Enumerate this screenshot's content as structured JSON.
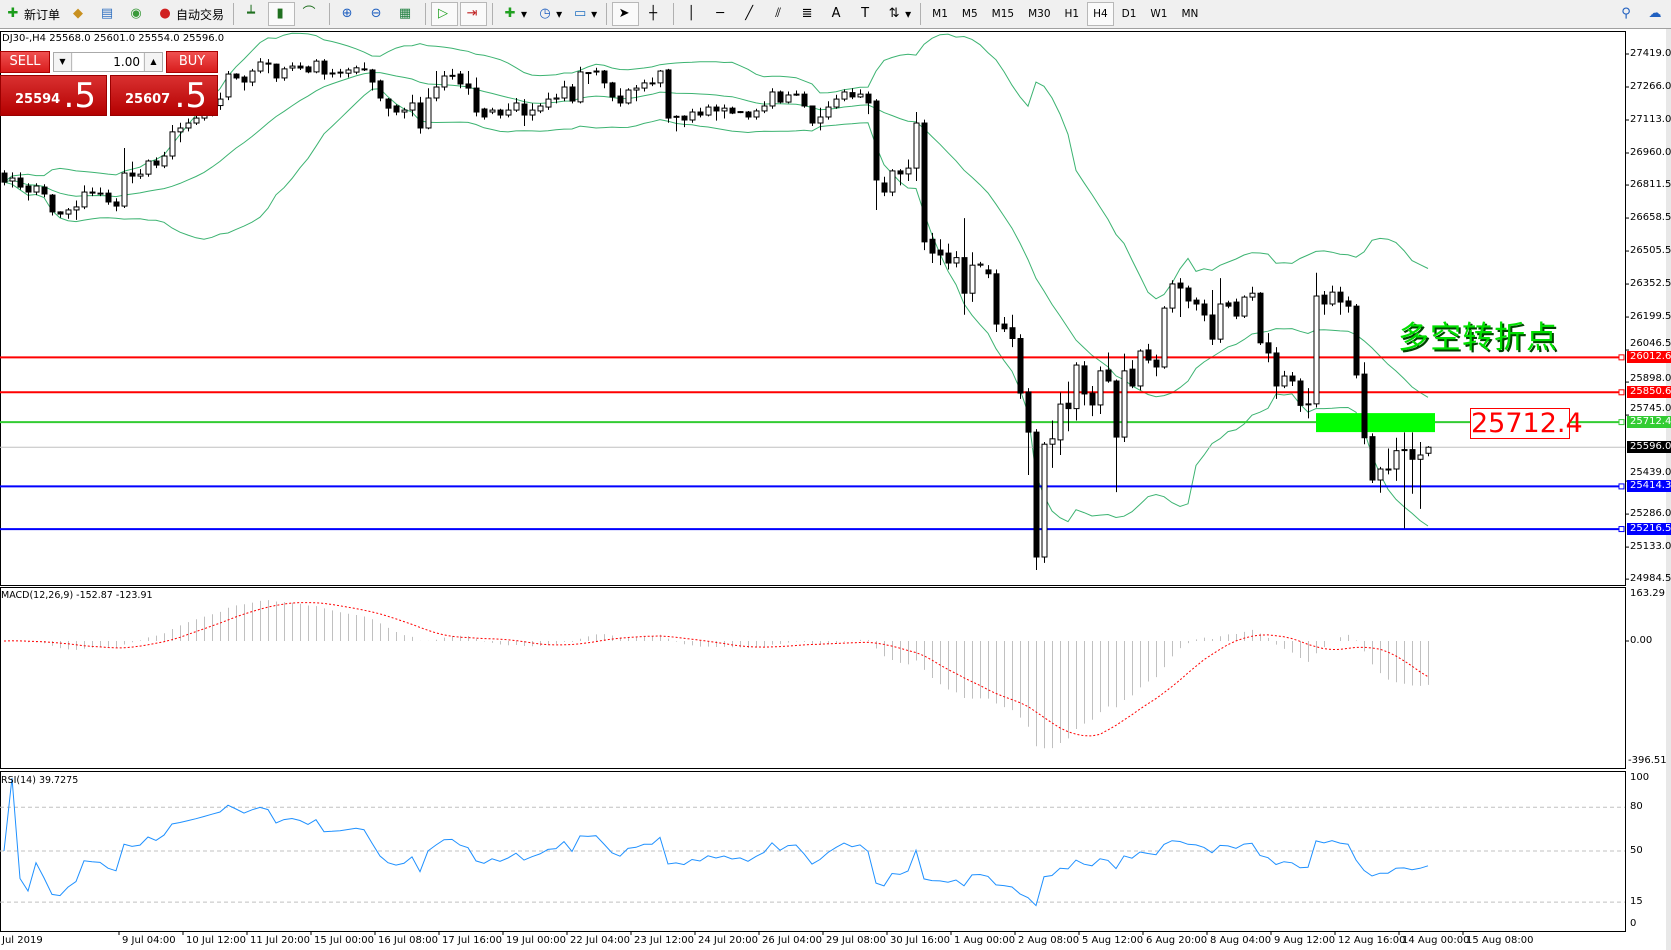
{
  "toolbar": {
    "new_order": "新订单",
    "auto_trading": "自动交易",
    "timeframes": [
      "M1",
      "M5",
      "M15",
      "M30",
      "H1",
      "H4",
      "D1",
      "W1",
      "MN"
    ],
    "active_timeframe": "H4"
  },
  "chart": {
    "header": "DJ30-,H4  25568.0 25601.0 25554.0 25596.0",
    "symbol": "DJ30-",
    "period": "H4"
  },
  "trade_panel": {
    "sell_label": "SELL",
    "buy_label": "BUY",
    "lot": "1.00",
    "sell_price_main": "25594",
    "sell_price_frac": ".5",
    "buy_price_main": "25607",
    "buy_price_frac": ".5"
  },
  "price_axis": {
    "labels": [
      "27419.0",
      "27266.0",
      "27113.0",
      "26960.0",
      "26811.5",
      "26658.5",
      "26505.5",
      "26352.5",
      "26199.5",
      "26046.5",
      "25898.0",
      "25745.0",
      "25439.0",
      "25286.0",
      "25133.0",
      "24984.5"
    ]
  },
  "time_axis": {
    "labels": [
      "Jul 2019",
      "9 Jul 04:00",
      "10 Jul 12:00",
      "11 Jul 20:00",
      "15 Jul 00:00",
      "16 Jul 08:00",
      "17 Jul 16:00",
      "19 Jul 00:00",
      "22 Jul 04:00",
      "23 Jul 12:00",
      "24 Jul 20:00",
      "26 Jul 04:00",
      "29 Jul 08:00",
      "30 Jul 16:00",
      "1 Aug 00:00",
      "2 Aug 08:00",
      "5 Aug 12:00",
      "6 Aug 20:00",
      "8 Aug 04:00",
      "9 Aug 12:00",
      "12 Aug 16:00",
      "14 Aug 00:00",
      "15 Aug 08:00"
    ]
  },
  "hlines": [
    {
      "price": "26012.6",
      "color": "#ff0000"
    },
    {
      "price": "25850.6",
      "color": "#ff0000"
    },
    {
      "price": "25712.4",
      "color": "#33cc33"
    },
    {
      "price": "25414.3",
      "color": "#0000ff"
    },
    {
      "price": "25216.5",
      "color": "#0000ff"
    }
  ],
  "bid_line": {
    "price": "25596.0",
    "color": "#c0c0c0"
  },
  "annotations": {
    "text": "多空转折点",
    "text_color": "#00e000",
    "price_label": "25712.4",
    "zone_color": "#00ff00"
  },
  "macd": {
    "label": "MACD(12,26,9) -152.87 -123.91",
    "max_label": "163.29",
    "zero_label": "0.00",
    "min_label": "-396.51",
    "max": 163.29,
    "min": -396.51
  },
  "rsi": {
    "label": "RSI(14) 39.7275",
    "levels": [
      "100",
      "80",
      "50",
      "15",
      "0"
    ]
  },
  "chart_data": {
    "type": "candlestick",
    "indicators": [
      "Bollinger Bands(20,2)",
      "MACD(12,26,9)",
      "RSI(14)"
    ],
    "bb_color": "#3cb371",
    "ohlc": [
      [
        26867,
        26880,
        26810,
        26825
      ],
      [
        26830,
        26870,
        26800,
        26844
      ],
      [
        26844,
        26870,
        26790,
        26802
      ],
      [
        26807,
        26820,
        26740,
        26779
      ],
      [
        26779,
        26820,
        26765,
        26807
      ],
      [
        26802,
        26815,
        26755,
        26770
      ],
      [
        26765,
        26770,
        26670,
        26687
      ],
      [
        26687,
        26690,
        26660,
        26677
      ],
      [
        26677,
        26705,
        26655,
        26696
      ],
      [
        26696,
        26740,
        26650,
        26710
      ],
      [
        26710,
        26810,
        26700,
        26779
      ],
      [
        26779,
        26800,
        26760,
        26774
      ],
      [
        26774,
        26800,
        26760,
        26770
      ],
      [
        26774,
        26790,
        26720,
        26733
      ],
      [
        26733,
        26750,
        26690,
        26714
      ],
      [
        26714,
        26983,
        26705,
        26867
      ],
      [
        26867,
        26920,
        26820,
        26853
      ],
      [
        26853,
        26885,
        26840,
        26862
      ],
      [
        26862,
        26930,
        26850,
        26923
      ],
      [
        26923,
        26940,
        26890,
        26904
      ],
      [
        26900,
        26965,
        26890,
        26946
      ],
      [
        26946,
        27090,
        26930,
        27058
      ],
      [
        27058,
        27100,
        27010,
        27076
      ],
      [
        27076,
        27120,
        27060,
        27099
      ],
      [
        27099,
        27140,
        27090,
        27122
      ],
      [
        27122,
        27170,
        27110,
        27150
      ],
      [
        27150,
        27200,
        27130,
        27180
      ],
      [
        27180,
        27240,
        27160,
        27210
      ],
      [
        27220,
        27340,
        27205,
        27326
      ],
      [
        27326,
        27330,
        27300,
        27308
      ],
      [
        27312,
        27320,
        27250,
        27289
      ],
      [
        27289,
        27350,
        27270,
        27340
      ],
      [
        27340,
        27400,
        27330,
        27382
      ],
      [
        27377,
        27395,
        27330,
        27372
      ],
      [
        27372,
        27375,
        27290,
        27308
      ],
      [
        27308,
        27360,
        27295,
        27350
      ],
      [
        27354,
        27380,
        27340,
        27363
      ],
      [
        27363,
        27380,
        27345,
        27354
      ],
      [
        27359,
        27365,
        27330,
        27336
      ],
      [
        27336,
        27395,
        27330,
        27386
      ],
      [
        27386,
        27395,
        27300,
        27326
      ],
      [
        27331,
        27350,
        27310,
        27330
      ],
      [
        27331,
        27350,
        27310,
        27335
      ],
      [
        27330,
        27355,
        27310,
        27345
      ],
      [
        27335,
        27365,
        27325,
        27355
      ],
      [
        27350,
        27380,
        27340,
        27349
      ],
      [
        27345,
        27350,
        27250,
        27289
      ],
      [
        27294,
        27300,
        27200,
        27215
      ],
      [
        27210,
        27215,
        27130,
        27168
      ],
      [
        27178,
        27185,
        27135,
        27150
      ],
      [
        27150,
        27170,
        27120,
        27159
      ],
      [
        27159,
        27230,
        27130,
        27192
      ],
      [
        27192,
        27220,
        27050,
        27076
      ],
      [
        27076,
        27260,
        27070,
        27215
      ],
      [
        27215,
        27340,
        27200,
        27266
      ],
      [
        27266,
        27340,
        27250,
        27317
      ],
      [
        27317,
        27350,
        27300,
        27320
      ],
      [
        27326,
        27340,
        27260,
        27280
      ],
      [
        27280,
        27340,
        27230,
        27261
      ],
      [
        27261,
        27310,
        27130,
        27150
      ],
      [
        27164,
        27170,
        27115,
        27127
      ],
      [
        27150,
        27170,
        27140,
        27159
      ],
      [
        27159,
        27165,
        27120,
        27136
      ],
      [
        27136,
        27190,
        27125,
        27159
      ],
      [
        27159,
        27215,
        27150,
        27192
      ],
      [
        27187,
        27210,
        27085,
        27136
      ],
      [
        27136,
        27190,
        27110,
        27159
      ],
      [
        27155,
        27190,
        27145,
        27178
      ],
      [
        27173,
        27240,
        27160,
        27210
      ],
      [
        27210,
        27235,
        27190,
        27215
      ],
      [
        27215,
        27295,
        27200,
        27266
      ],
      [
        27266,
        27280,
        27190,
        27201
      ],
      [
        27197,
        27360,
        27190,
        27336
      ],
      [
        27331,
        27335,
        27280,
        27333
      ],
      [
        27336,
        27355,
        27320,
        27340
      ],
      [
        27340,
        27345,
        27260,
        27285
      ],
      [
        27285,
        27290,
        27200,
        27220
      ],
      [
        27224,
        27260,
        27175,
        27192
      ],
      [
        27192,
        27260,
        27185,
        27252
      ],
      [
        27252,
        27275,
        27200,
        27261
      ],
      [
        27261,
        27300,
        27245,
        27285
      ],
      [
        27283,
        27310,
        27270,
        27285
      ],
      [
        27285,
        27345,
        27265,
        27340
      ],
      [
        27345,
        27350,
        27100,
        27122
      ],
      [
        27127,
        27135,
        27060,
        27130
      ],
      [
        27131,
        27135,
        27080,
        27113
      ],
      [
        27113,
        27165,
        27100,
        27150
      ],
      [
        27150,
        27170,
        27125,
        27136
      ],
      [
        27136,
        27185,
        27130,
        27173
      ],
      [
        27173,
        27185,
        27110,
        27155
      ],
      [
        27155,
        27185,
        27120,
        27168
      ],
      [
        27168,
        27175,
        27140,
        27145
      ],
      [
        27150,
        27155,
        27145,
        27152
      ],
      [
        27150,
        27155,
        27115,
        27127
      ],
      [
        27127,
        27165,
        27115,
        27155
      ],
      [
        27155,
        27200,
        27145,
        27178
      ],
      [
        27178,
        27260,
        27165,
        27243
      ],
      [
        27243,
        27250,
        27190,
        27196
      ],
      [
        27196,
        27245,
        27190,
        27229
      ],
      [
        27229,
        27250,
        27225,
        27233
      ],
      [
        27233,
        27245,
        27170,
        27178
      ],
      [
        27178,
        27180,
        27085,
        27099
      ],
      [
        27099,
        27170,
        27065,
        27127
      ],
      [
        27127,
        27200,
        27115,
        27173
      ],
      [
        27173,
        27230,
        27165,
        27210
      ],
      [
        27210,
        27255,
        27200,
        27243
      ],
      [
        27240,
        27260,
        27210,
        27220
      ],
      [
        27220,
        27255,
        27215,
        27233
      ],
      [
        27233,
        27245,
        27140,
        27192
      ],
      [
        27201,
        27210,
        26696,
        26835
      ],
      [
        26821,
        26850,
        26760,
        26779
      ],
      [
        26779,
        26885,
        26760,
        26877
      ],
      [
        26877,
        26885,
        26810,
        26863
      ],
      [
        26863,
        26930,
        26830,
        26890
      ],
      [
        26890,
        27150,
        26830,
        27099
      ],
      [
        27099,
        27115,
        26510,
        26548
      ],
      [
        26560,
        26590,
        26450,
        26496
      ],
      [
        26510,
        26560,
        26440,
        26487
      ],
      [
        26496,
        26540,
        26420,
        26450
      ],
      [
        26450,
        26505,
        26430,
        26475
      ],
      [
        26475,
        26658,
        26210,
        26310
      ],
      [
        26310,
        26500,
        26270,
        26440
      ],
      [
        26440,
        26455,
        26430,
        26445
      ],
      [
        26418,
        26440,
        26380,
        26400
      ],
      [
        26400,
        26420,
        26130,
        26167
      ],
      [
        26167,
        26200,
        26130,
        26145
      ],
      [
        26150,
        26210,
        26060,
        26100
      ],
      [
        26100,
        26120,
        25820,
        25847
      ],
      [
        25852,
        25870,
        25467,
        25666
      ],
      [
        25666,
        25680,
        25027,
        25087
      ],
      [
        25087,
        25620,
        25060,
        25610
      ],
      [
        25610,
        25720,
        25500,
        25635
      ],
      [
        25630,
        25850,
        25560,
        25796
      ],
      [
        25800,
        25900,
        25670,
        25775
      ],
      [
        25775,
        25990,
        25720,
        25977
      ],
      [
        25973,
        25995,
        25790,
        25843
      ],
      [
        25847,
        25880,
        25740,
        25792
      ],
      [
        25792,
        25970,
        25750,
        25950
      ],
      [
        25954,
        26035,
        25895,
        25903
      ],
      [
        25903,
        25910,
        25388,
        25643
      ],
      [
        25643,
        26030,
        25620,
        25950
      ],
      [
        25958,
        26000,
        25870,
        25880
      ],
      [
        25880,
        26050,
        25860,
        26042
      ],
      [
        26047,
        26075,
        25985,
        26000
      ],
      [
        26000,
        26025,
        25925,
        25968
      ],
      [
        25968,
        26250,
        25960,
        26241
      ],
      [
        26241,
        26370,
        26220,
        26353
      ],
      [
        26357,
        26380,
        26200,
        26334
      ],
      [
        26334,
        26345,
        26240,
        26274
      ],
      [
        26278,
        26290,
        26230,
        26260
      ],
      [
        26260,
        26280,
        26180,
        26209
      ],
      [
        26209,
        26325,
        26070,
        26097
      ],
      [
        26097,
        26380,
        26080,
        26260
      ],
      [
        26265,
        26275,
        26240,
        26250
      ],
      [
        26269,
        26285,
        26190,
        26204
      ],
      [
        26204,
        26300,
        26195,
        26292
      ],
      [
        26292,
        26340,
        26275,
        26310
      ],
      [
        26310,
        26315,
        26070,
        26080
      ],
      [
        26080,
        26125,
        25990,
        26033
      ],
      [
        26033,
        26060,
        25820,
        25880
      ],
      [
        25880,
        25950,
        25870,
        25926
      ],
      [
        25926,
        25945,
        25880,
        25903
      ],
      [
        25903,
        25915,
        25760,
        25790
      ],
      [
        25795,
        25870,
        25730,
        25797
      ],
      [
        25797,
        26405,
        25780,
        26297
      ],
      [
        26301,
        26320,
        26210,
        26260
      ],
      [
        26260,
        26345,
        26250,
        26315
      ],
      [
        26315,
        26340,
        26210,
        26269
      ],
      [
        26274,
        26295,
        26220,
        26250
      ],
      [
        26250,
        26260,
        25915,
        25931
      ],
      [
        25935,
        25990,
        25610,
        25640
      ],
      [
        25645,
        25660,
        25430,
        25444
      ],
      [
        25444,
        25505,
        25385,
        25495
      ],
      [
        25492,
        25590,
        25470,
        25495
      ],
      [
        25495,
        25640,
        25440,
        25580
      ],
      [
        25583,
        25665,
        25220,
        25585
      ],
      [
        25585,
        25665,
        25380,
        25540
      ],
      [
        25540,
        25620,
        25310,
        25560
      ],
      [
        25568,
        25601,
        25554,
        25596
      ]
    ]
  }
}
